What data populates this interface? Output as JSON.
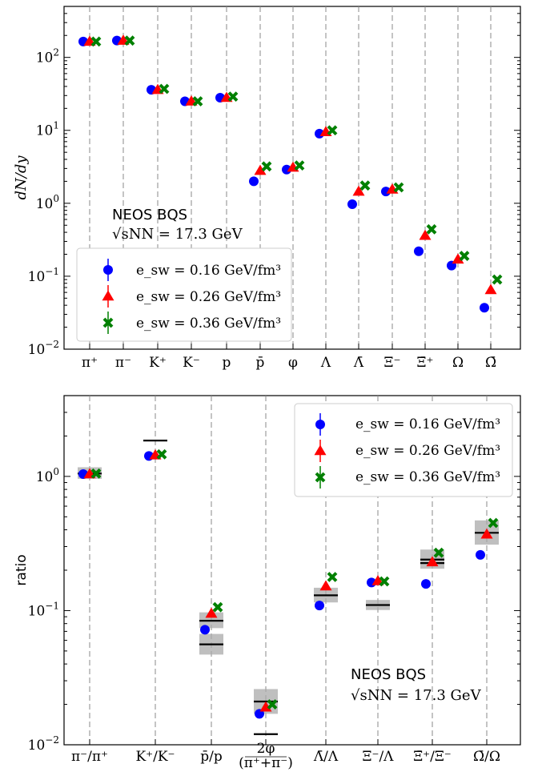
{
  "chart_data": [
    {
      "type": "scatter",
      "ylabel": "dN/dy",
      "yscale": "log",
      "ylim": [
        0.01,
        500
      ],
      "y_ticks": [
        "10^-2",
        "10^-1",
        "10^0",
        "10^1",
        "10^2"
      ],
      "categories": [
        "π⁺",
        "π⁻",
        "K⁺",
        "K⁻",
        "p",
        "p̄",
        "φ",
        "Λ",
        "Λ̄",
        "Ξ⁻",
        "Ξ̄⁺",
        "Ω",
        "Ω̄"
      ],
      "annotation": {
        "line1": "NEOS BQS",
        "line2": "√sNN = 17.3 GeV"
      },
      "legend_position": "bottom-left",
      "series": [
        {
          "name": "e_sw = 0.16 GeV/fm³",
          "color": "#0000ff",
          "marker": "circle",
          "values": [
            165,
            170,
            36,
            25,
            28,
            2.0,
            2.9,
            9.0,
            0.97,
            1.45,
            0.22,
            0.14,
            0.037
          ]
        },
        {
          "name": "e_sw = 0.26 GeV/fm³",
          "color": "#ff0000",
          "marker": "triangle",
          "values": [
            165,
            170,
            36,
            25,
            28,
            2.8,
            3.1,
            9.5,
            1.45,
            1.55,
            0.36,
            0.17,
            0.065
          ]
        },
        {
          "name": "e_sw = 0.36 GeV/fm³",
          "color": "#008000",
          "marker": "x",
          "values": [
            165,
            170,
            37,
            25,
            29,
            3.2,
            3.3,
            10.0,
            1.75,
            1.65,
            0.44,
            0.19,
            0.09
          ]
        }
      ]
    },
    {
      "type": "scatter",
      "ylabel": "ratio",
      "yscale": "log",
      "ylim": [
        0.01,
        4
      ],
      "y_ticks": [
        "10^-2",
        "10^-1",
        "10^0"
      ],
      "categories": [
        "π⁻/π⁺",
        "K⁺/K⁻",
        "p̄/p",
        "2φ/(π⁺+π⁻)",
        "Λ̄/Λ",
        "Ξ⁻/Λ",
        "Ξ̄⁺/Ξ⁻",
        "Ω̄/Ω"
      ],
      "annotation": {
        "line1": "NEOS BQS",
        "line2": "√sNN = 17.3 GeV"
      },
      "legend_position": "top-right",
      "series": [
        {
          "name": "e_sw = 0.16 GeV/fm³",
          "color": "#0000ff",
          "marker": "circle",
          "values": [
            1.04,
            1.42,
            0.072,
            0.017,
            0.109,
            0.162,
            0.158,
            0.26
          ]
        },
        {
          "name": "e_sw = 0.26 GeV/fm³",
          "color": "#ff0000",
          "marker": "triangle",
          "values": [
            1.04,
            1.44,
            0.095,
            0.019,
            0.152,
            0.166,
            0.23,
            0.37
          ]
        },
        {
          "name": "e_sw = 0.36 GeV/fm³",
          "color": "#008000",
          "marker": "x",
          "values": [
            1.05,
            1.46,
            0.106,
            0.02,
            0.178,
            0.165,
            0.27,
            0.45
          ]
        }
      ],
      "experiment": [
        {
          "value": 1.05,
          "band": [
            0.96,
            1.17
          ]
        },
        {
          "value": 1.85,
          "band": null
        },
        {
          "value": 0.084,
          "band": [
            0.074,
            0.097
          ],
          "value2": 0.056,
          "band2": [
            0.047,
            0.067
          ]
        },
        {
          "value": 0.021,
          "band": [
            0.017,
            0.026
          ],
          "value2": 0.012,
          "band2": null
        },
        {
          "value": 0.13,
          "band": [
            0.115,
            0.148
          ]
        },
        {
          "value": 0.11,
          "band": [
            0.101,
            0.12
          ]
        },
        {
          "value": 0.24,
          "band": [
            0.205,
            0.285
          ],
          "value2": 0.226,
          "band2": null
        },
        {
          "value": 0.38,
          "band": [
            0.31,
            0.47
          ]
        }
      ]
    }
  ]
}
